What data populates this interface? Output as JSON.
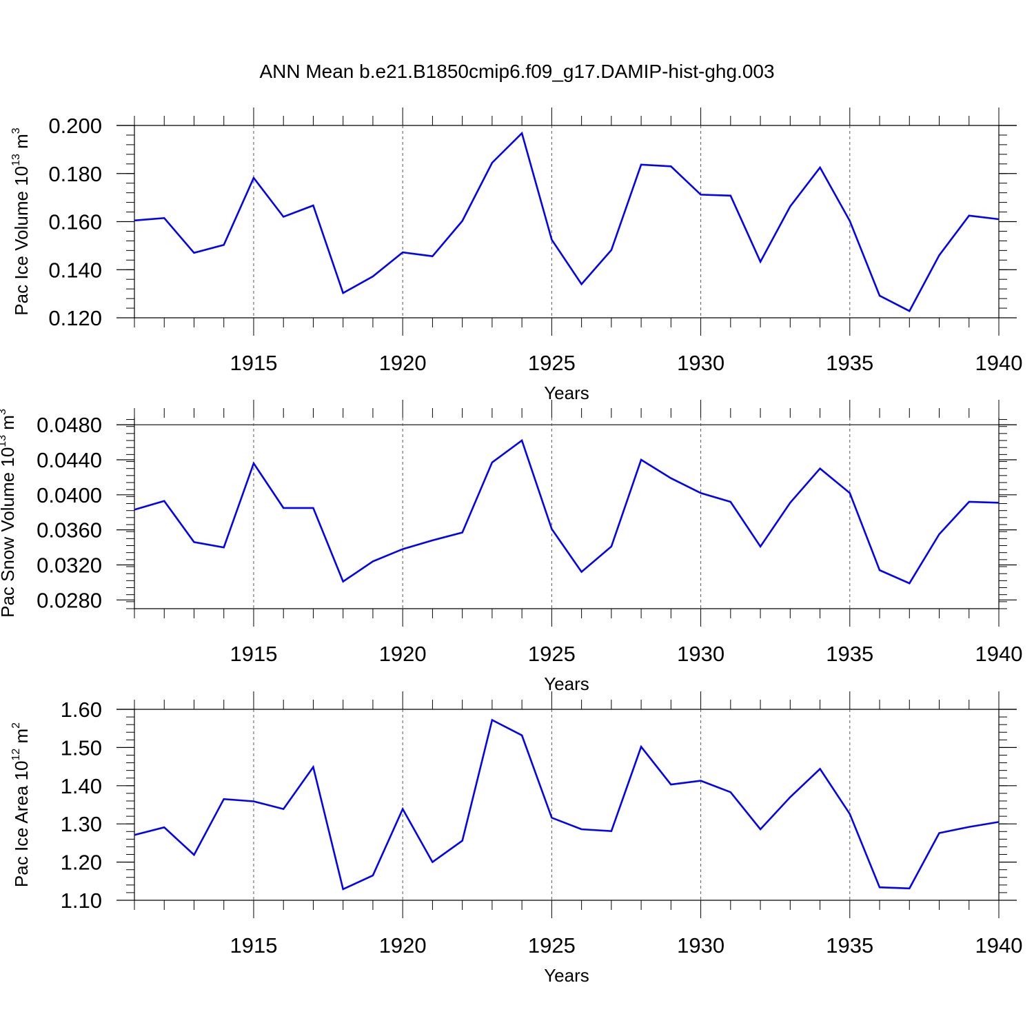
{
  "page": {
    "title": "ANN Mean b.e21.B1850cmip6.f09_g17.DAMIP-hist-ghg.003"
  },
  "colors": {
    "line": "#0000ff",
    "axis": "#000000",
    "grid": "#555555"
  },
  "chart_data": [
    {
      "type": "line",
      "ylabel": "Pac Ice Volume 10",
      "ylabel_exp": "13",
      "ylabel_unit": " m",
      "ylabel_unit_exp": "3",
      "xlabel": "Years",
      "xlim": [
        1911,
        1940
      ],
      "ylim": [
        0.12,
        0.2
      ],
      "yticks": [
        0.12,
        0.14,
        0.16,
        0.18,
        0.2
      ],
      "ytick_labels": [
        "0.120",
        "0.140",
        "0.160",
        "0.180",
        "0.200"
      ],
      "xticks": [
        1915,
        1920,
        1925,
        1930,
        1935,
        1940
      ],
      "xtick_labels": [
        "1915",
        "1920",
        "1925",
        "1930",
        "1935",
        "1940"
      ],
      "x": [
        1911,
        1912,
        1913,
        1914,
        1915,
        1916,
        1917,
        1918,
        1919,
        1920,
        1921,
        1922,
        1923,
        1924,
        1925,
        1926,
        1927,
        1928,
        1929,
        1930,
        1931,
        1932,
        1933,
        1934,
        1935,
        1936,
        1937,
        1938,
        1939,
        1940
      ],
      "series": [
        {
          "name": "Pac Ice Volume",
          "values": [
            0.1605,
            0.1615,
            0.147,
            0.1503,
            0.1782,
            0.162,
            0.1667,
            0.1303,
            0.1372,
            0.1472,
            0.1456,
            0.1603,
            0.1845,
            0.1968,
            0.1525,
            0.134,
            0.1482,
            0.1837,
            0.183,
            0.1712,
            0.1708,
            0.1433,
            0.1663,
            0.1825,
            0.1603,
            0.1292,
            0.1228,
            0.146,
            0.1625,
            0.161
          ]
        }
      ]
    },
    {
      "type": "line",
      "ylabel": "Pac Snow Volume 10",
      "ylabel_exp": "13",
      "ylabel_unit": " m",
      "ylabel_unit_exp": "3",
      "xlabel": "Years",
      "xlim": [
        1911,
        1940
      ],
      "ylim": [
        0.027,
        0.0488
      ],
      "yticks": [
        0.028,
        0.032,
        0.036,
        0.04,
        0.044,
        0.048
      ],
      "ytick_labels": [
        "0.0280",
        "0.0320",
        "0.0360",
        "0.0400",
        "0.0440",
        "0.0480"
      ],
      "xticks": [
        1915,
        1920,
        1925,
        1930,
        1935,
        1940
      ],
      "xtick_labels": [
        "1915",
        "1920",
        "1925",
        "1930",
        "1935",
        "1940"
      ],
      "x": [
        1911,
        1912,
        1913,
        1914,
        1915,
        1916,
        1917,
        1918,
        1919,
        1920,
        1921,
        1922,
        1923,
        1924,
        1925,
        1926,
        1927,
        1928,
        1929,
        1930,
        1931,
        1932,
        1933,
        1934,
        1935,
        1936,
        1937,
        1938,
        1939,
        1940
      ],
      "series": [
        {
          "name": "Pac Snow Volume",
          "values": [
            0.0383,
            0.0393,
            0.0346,
            0.034,
            0.0436,
            0.0385,
            0.0385,
            0.0301,
            0.0324,
            0.0338,
            0.0348,
            0.0357,
            0.0437,
            0.0462,
            0.0361,
            0.0312,
            0.0341,
            0.044,
            0.0419,
            0.0402,
            0.0392,
            0.0341,
            0.0391,
            0.043,
            0.0402,
            0.0314,
            0.0299,
            0.0355,
            0.0392,
            0.0391
          ]
        }
      ]
    },
    {
      "type": "line",
      "ylabel": "Pac Ice Area 10",
      "ylabel_exp": "12",
      "ylabel_unit": " m",
      "ylabel_unit_exp": "2",
      "xlabel": "Years",
      "xlim": [
        1911,
        1940
      ],
      "ylim": [
        1.1,
        1.6
      ],
      "yticks": [
        1.1,
        1.2,
        1.3,
        1.4,
        1.5,
        1.6
      ],
      "ytick_labels": [
        "1.10",
        "1.20",
        "1.30",
        "1.40",
        "1.50",
        "1.60"
      ],
      "xticks": [
        1915,
        1920,
        1925,
        1930,
        1935,
        1940
      ],
      "xtick_labels": [
        "1915",
        "1920",
        "1925",
        "1930",
        "1935",
        "1940"
      ],
      "x": [
        1911,
        1912,
        1913,
        1914,
        1915,
        1916,
        1917,
        1918,
        1919,
        1920,
        1921,
        1922,
        1923,
        1924,
        1925,
        1926,
        1927,
        1928,
        1929,
        1930,
        1931,
        1932,
        1933,
        1934,
        1935,
        1936,
        1937,
        1938,
        1939,
        1940
      ],
      "series": [
        {
          "name": "Pac Ice Area",
          "values": [
            1.271,
            1.291,
            1.219,
            1.365,
            1.359,
            1.339,
            1.449,
            1.129,
            1.165,
            1.339,
            1.2,
            1.256,
            1.572,
            1.532,
            1.316,
            1.286,
            1.281,
            1.502,
            1.403,
            1.413,
            1.383,
            1.286,
            1.37,
            1.444,
            1.326,
            1.134,
            1.131,
            1.276,
            1.292,
            1.305
          ]
        }
      ]
    }
  ]
}
